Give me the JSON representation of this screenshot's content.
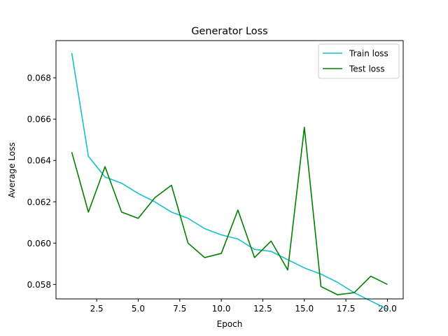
{
  "chart_data": {
    "type": "line",
    "title": "Generator Loss",
    "xlabel": "Epoch",
    "ylabel": "Average Loss",
    "xlim": [
      0.05,
      20.95
    ],
    "ylim": [
      0.0573,
      0.0698
    ],
    "xticks": [
      2.5,
      5.0,
      7.5,
      10.0,
      12.5,
      15.0,
      17.5,
      20.0
    ],
    "xtick_labels": [
      "2.5",
      "5.0",
      "7.5",
      "10.0",
      "12.5",
      "15.0",
      "17.5",
      "20.0"
    ],
    "yticks": [
      0.058,
      0.06,
      0.062,
      0.064,
      0.066,
      0.068
    ],
    "ytick_labels": [
      "0.058",
      "0.060",
      "0.062",
      "0.064",
      "0.066",
      "0.068"
    ],
    "grid": false,
    "legend_position": "top-right",
    "series": [
      {
        "name": "Train loss",
        "color": "#17becf",
        "x": [
          1,
          2,
          3,
          4,
          5,
          6,
          7,
          8,
          9,
          10,
          11,
          12,
          13,
          14,
          15,
          16,
          17,
          18,
          19,
          20
        ],
        "y": [
          0.0692,
          0.0642,
          0.0632,
          0.0629,
          0.0624,
          0.062,
          0.0615,
          0.0612,
          0.0607,
          0.0604,
          0.0602,
          0.0597,
          0.0596,
          0.0592,
          0.0588,
          0.0585,
          0.0581,
          0.0576,
          0.0572,
          0.0568
        ]
      },
      {
        "name": "Test loss",
        "color": "#008000",
        "x": [
          1,
          2,
          3,
          4,
          5,
          6,
          7,
          8,
          9,
          10,
          11,
          12,
          13,
          14,
          15,
          16,
          17,
          18,
          19,
          20
        ],
        "y": [
          0.0644,
          0.0615,
          0.0637,
          0.0615,
          0.0612,
          0.0622,
          0.0628,
          0.06,
          0.0593,
          0.0595,
          0.0616,
          0.0593,
          0.0601,
          0.0587,
          0.0656,
          0.0579,
          0.0575,
          0.0576,
          0.0584,
          0.058
        ]
      }
    ]
  }
}
